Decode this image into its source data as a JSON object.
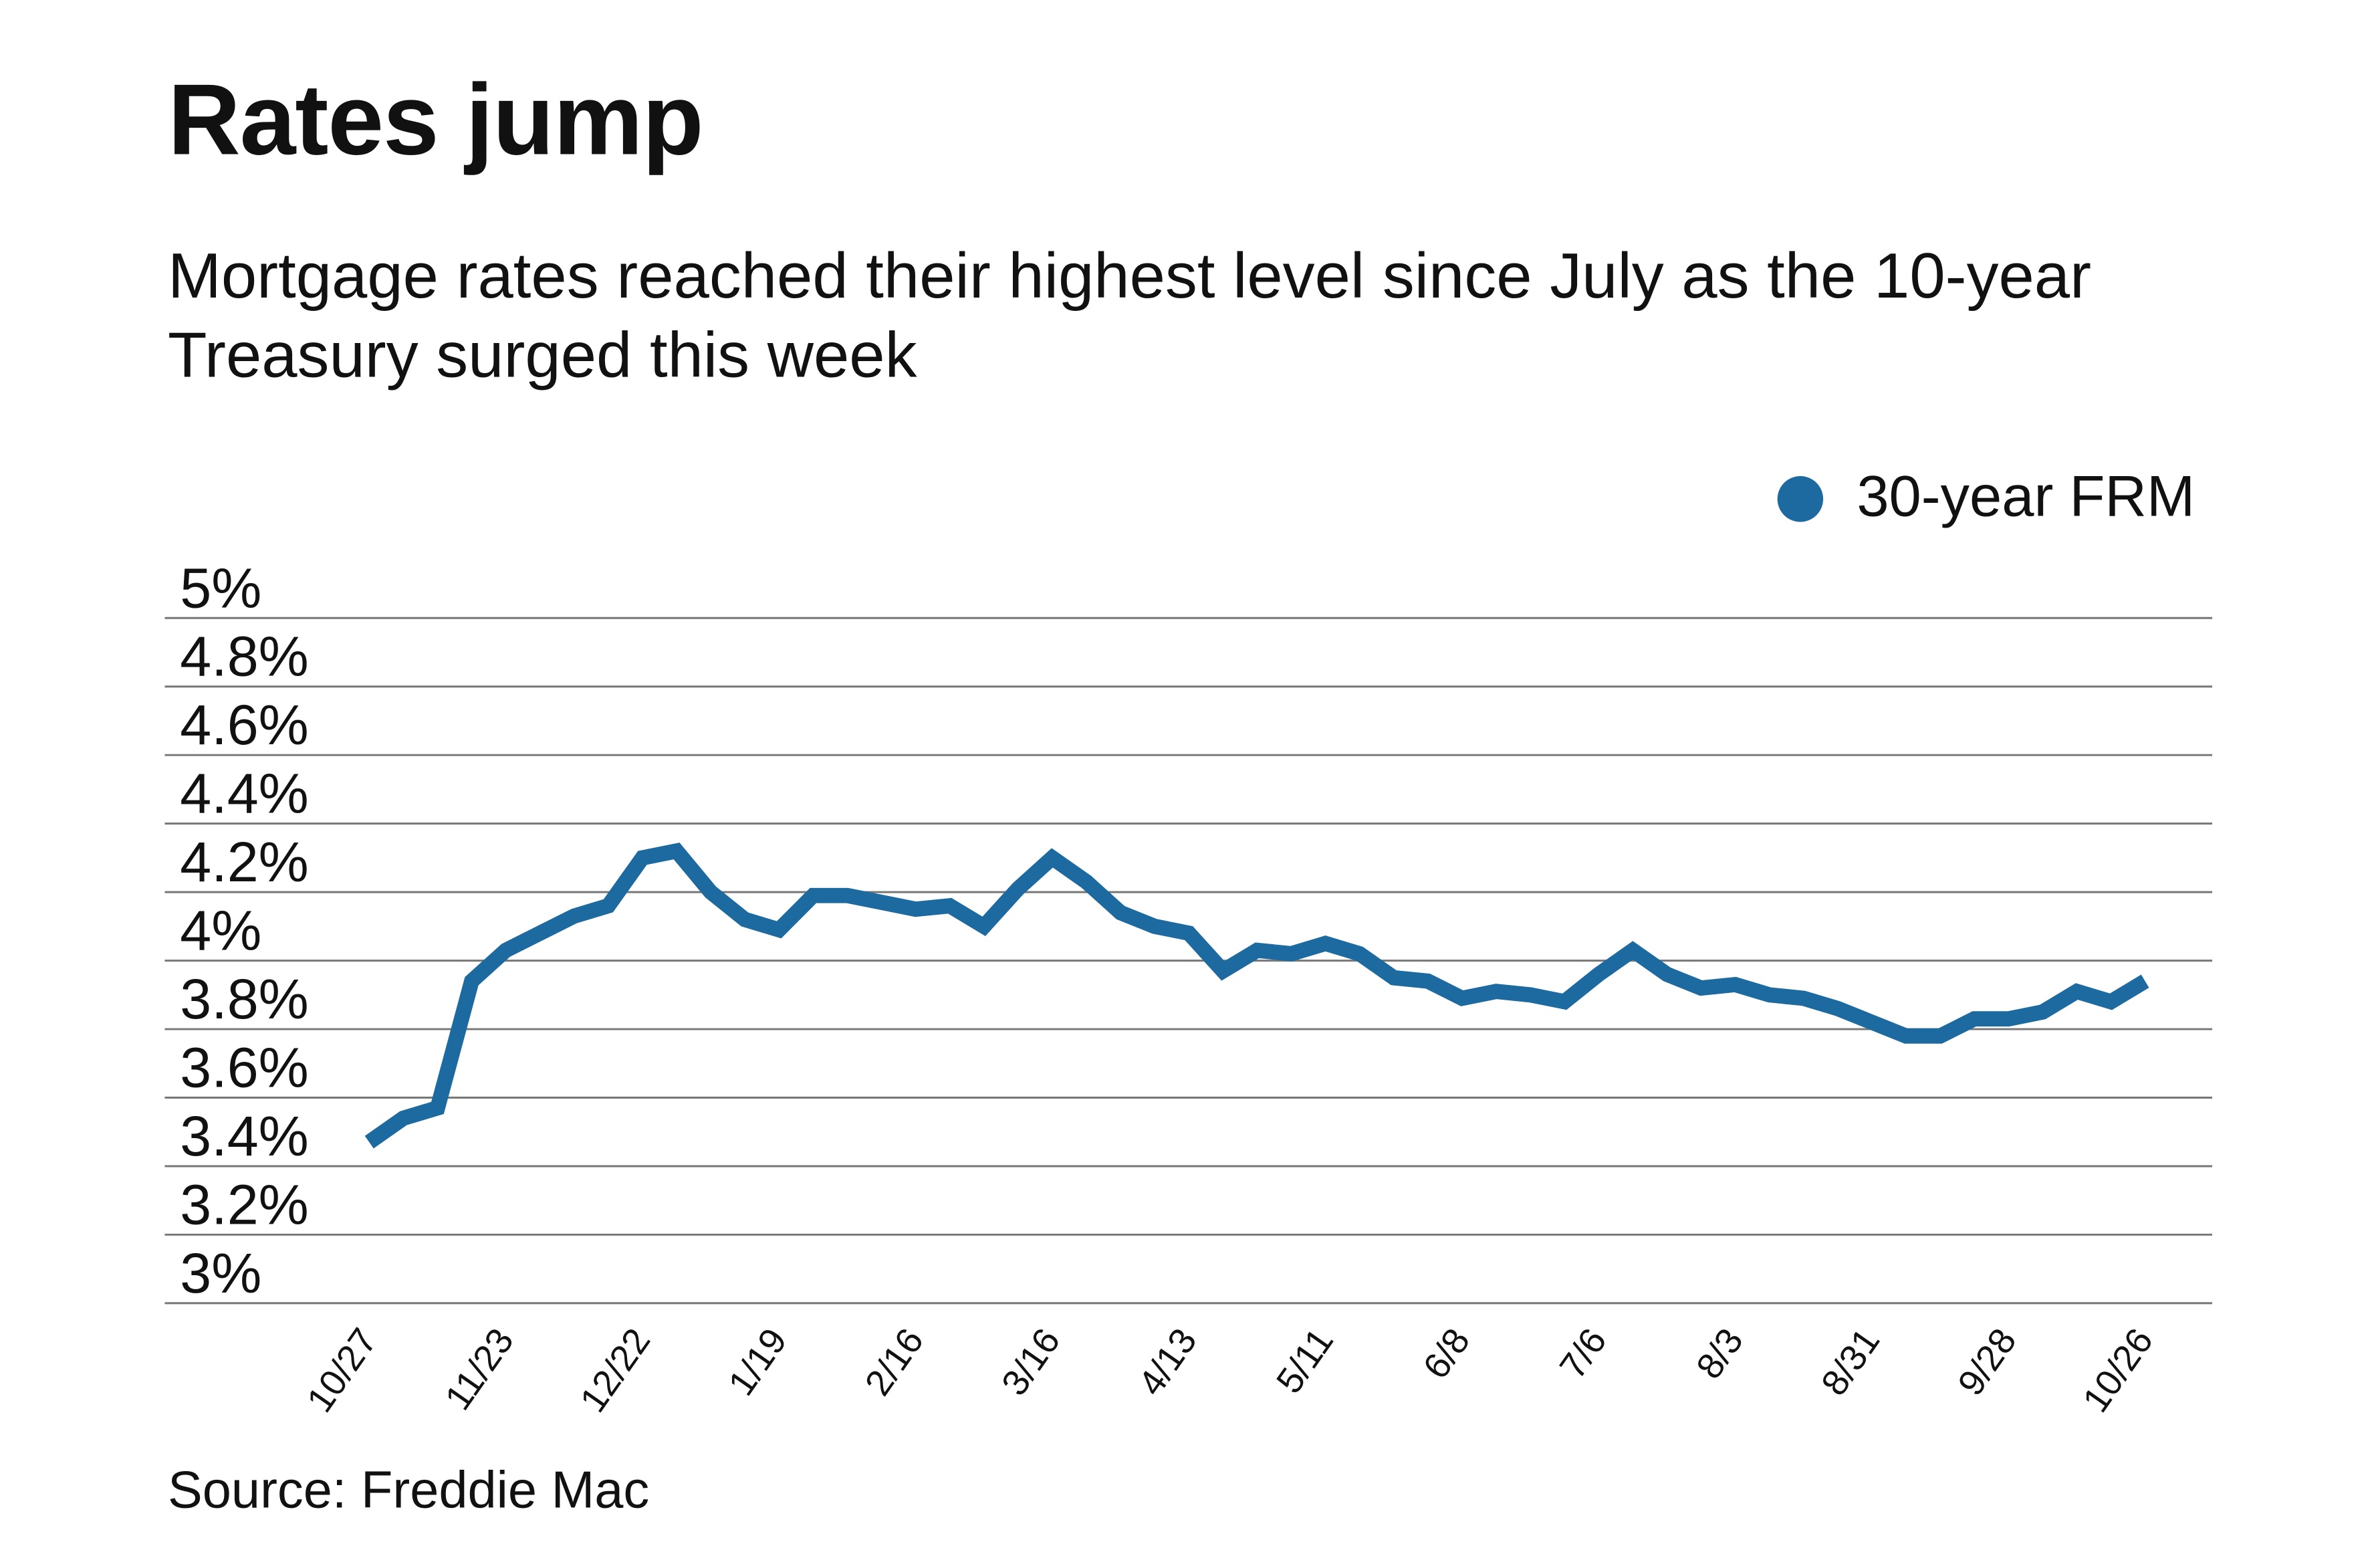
{
  "title": "Rates jump",
  "subtitle": "Mortgage rates reached their highest level since July as the 10-year Treasury surged this week",
  "source": "Source: Freddie Mac",
  "colors": {
    "series": "#1c6aa0",
    "grid": "#777777"
  },
  "chart_data": {
    "type": "line",
    "title": "Rates jump",
    "legend": {
      "position": "top-right",
      "entries": [
        "30-year FRM"
      ]
    },
    "grid": true,
    "ylim": [
      3,
      5
    ],
    "yticks": [
      "3%",
      "3.2%",
      "3.4%",
      "3.6%",
      "3.8%",
      "4%",
      "4.2%",
      "4.4%",
      "4.6%",
      "4.8%",
      "5%"
    ],
    "xticks": [
      "10/27",
      "11/23",
      "12/22",
      "1/19",
      "2/16",
      "3/16",
      "4/13",
      "5/11",
      "6/8",
      "7/6",
      "8/3",
      "8/31",
      "9/28",
      "10/26"
    ],
    "series": [
      {
        "name": "30-year FRM",
        "x": [
          "10/27",
          "11/3",
          "11/10",
          "11/17",
          "11/23",
          "12/1",
          "12/8",
          "12/15",
          "12/22",
          "12/29",
          "1/5",
          "1/12",
          "1/19",
          "1/26",
          "2/2",
          "2/9",
          "2/16",
          "2/23",
          "3/2",
          "3/9",
          "3/16",
          "3/23",
          "3/30",
          "4/6",
          "4/13",
          "4/20",
          "4/27",
          "5/4",
          "5/11",
          "5/18",
          "5/25",
          "6/1",
          "6/8",
          "6/15",
          "6/22",
          "6/29",
          "7/6",
          "7/13",
          "7/20",
          "7/27",
          "8/3",
          "8/10",
          "8/17",
          "8/24",
          "8/31",
          "9/7",
          "9/14",
          "9/21",
          "9/28",
          "10/5",
          "10/12",
          "10/19",
          "10/26"
        ],
        "values": [
          3.47,
          3.54,
          3.57,
          3.94,
          4.03,
          4.08,
          4.13,
          4.16,
          4.3,
          4.32,
          4.2,
          4.12,
          4.09,
          4.19,
          4.19,
          4.17,
          4.15,
          4.16,
          4.1,
          4.21,
          4.3,
          4.23,
          4.14,
          4.1,
          4.08,
          3.97,
          4.03,
          4.02,
          4.05,
          4.02,
          3.95,
          3.94,
          3.89,
          3.91,
          3.9,
          3.88,
          3.96,
          4.03,
          3.96,
          3.92,
          3.93,
          3.9,
          3.89,
          3.86,
          3.82,
          3.78,
          3.78,
          3.83,
          3.83,
          3.85,
          3.91,
          3.88,
          3.94
        ]
      }
    ]
  }
}
